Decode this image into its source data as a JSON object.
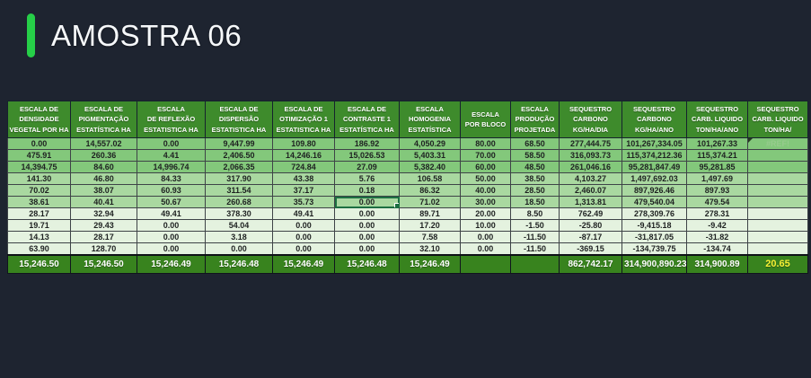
{
  "title": "AMOSTRA 06",
  "colors": {
    "background": "#1e2430",
    "accent_green": "#26cf48",
    "header_green": "#3e8b2c",
    "row_band_top": "#83c87b",
    "row_band_middle": "#a9d8a0",
    "row_band_light": "#e4f2df",
    "total_row_green": "#38831e",
    "total_highlight_text": "#f7f135"
  },
  "table": {
    "headers": [
      "ESCALA DE\nDENSIDADE\nVEGETAL POR HA",
      "ESCALA DE\nPIGMENTAÇÃO\nESTATÍSTICA HA",
      "ESCALA\nDE REFLEXÃO\nESTATISTICA HA",
      "ESCALA DE\nDISPERSÃO\nESTATISTICA HA",
      "ESCALA DE\nOTIMIZAÇÃO 1\nESTATISTICA HA",
      "ESCALA DE\nCONTRASTE 1\nESTATÍSTICA HA",
      "ESCALA\nHOMOGENIA\nESTATÍSTICA",
      "ESCALA\nPOR BLOCO",
      "ESCALA\nPRODUÇÃO\nPROJETADA",
      "SEQUESTRO\nCARBONO\nKG/HA/DIA",
      "SEQUESTRO\nCARBONO\nKG/HA/ANO",
      "SEQUESTRO\nCARB. LIQUIDO\nTON/HA/ANO",
      "SEQUESTRO\nCARB. LIQUIDO\nTON/HA/"
    ],
    "rows": [
      [
        "0.00",
        "14,557.02",
        "0.00",
        "9,447.99",
        "109.80",
        "186.92",
        "4,050.29",
        "80.00",
        "68.50",
        "277,444.75",
        "101,267,334.05",
        "101,267.33",
        "#REF!"
      ],
      [
        "475.91",
        "260.36",
        "4.41",
        "2,406.50",
        "14,246.16",
        "15,026.53",
        "5,403.31",
        "70.00",
        "58.50",
        "316,093.73",
        "115,374,212.36",
        "115,374.21",
        ""
      ],
      [
        "14,394.75",
        "84.60",
        "14,996.74",
        "2,066.35",
        "724.84",
        "27.09",
        "5,382.40",
        "60.00",
        "48.50",
        "261,046.16",
        "95,281,847.49",
        "95,281.85",
        ""
      ],
      [
        "141.30",
        "46.80",
        "84.33",
        "317.90",
        "43.38",
        "5.76",
        "106.58",
        "50.00",
        "38.50",
        "4,103.27",
        "1,497,692.03",
        "1,497.69",
        ""
      ],
      [
        "70.02",
        "38.07",
        "60.93",
        "311.54",
        "37.17",
        "0.18",
        "86.32",
        "40.00",
        "28.50",
        "2,460.07",
        "897,926.46",
        "897.93",
        ""
      ],
      [
        "38.61",
        "40.41",
        "50.67",
        "260.68",
        "35.73",
        "0.00",
        "71.02",
        "30.00",
        "18.50",
        "1,313.81",
        "479,540.04",
        "479.54",
        ""
      ],
      [
        "28.17",
        "32.94",
        "49.41",
        "378.30",
        "49.41",
        "0.00",
        "89.71",
        "20.00",
        "8.50",
        "762.49",
        "278,309.76",
        "278.31",
        ""
      ],
      [
        "19.71",
        "29.43",
        "0.00",
        "54.04",
        "0.00",
        "0.00",
        "17.20",
        "10.00",
        "-1.50",
        "-25.80",
        "-9,415.18",
        "-9.42",
        ""
      ],
      [
        "14.13",
        "28.17",
        "0.00",
        "3.18",
        "0.00",
        "0.00",
        "7.58",
        "0.00",
        "-11.50",
        "-87.17",
        "-31,817.05",
        "-31.82",
        ""
      ],
      [
        "63.90",
        "128.70",
        "0.00",
        "0.00",
        "0.00",
        "0.00",
        "32.10",
        "0.00",
        "-11.50",
        "-369.15",
        "-134,739.75",
        "-134.74",
        ""
      ]
    ],
    "totals": [
      "15,246.50",
      "15,246.50",
      "15,246.49",
      "15,246.48",
      "15,246.49",
      "15,246.48",
      "15,246.49",
      "",
      "",
      "862,742.17",
      "314,900,890.23",
      "314,900.89",
      "20.65"
    ],
    "annotations": {
      "ref_error": {
        "row": 0,
        "col": 12,
        "label": "#REF!"
      },
      "selected_cell": {
        "row": 5,
        "col": 5
      }
    }
  }
}
